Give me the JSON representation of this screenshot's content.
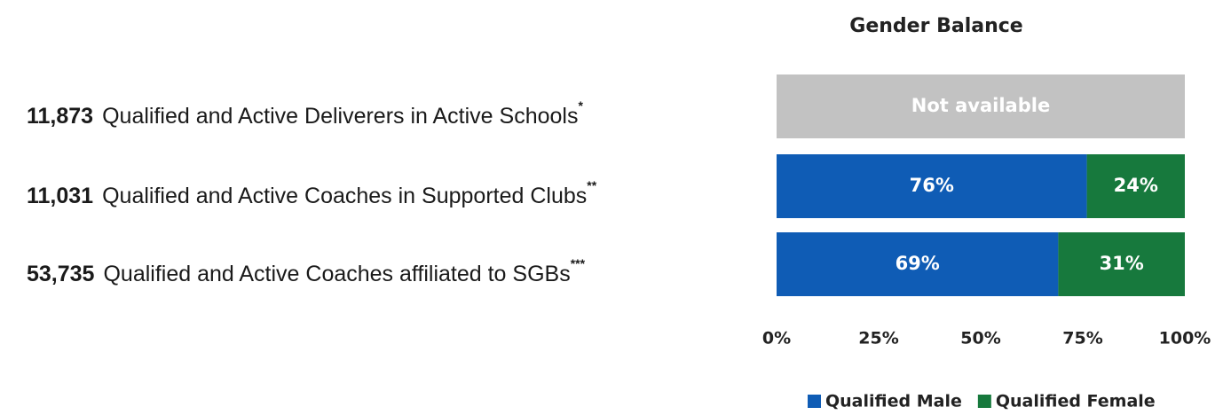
{
  "chart_data": {
    "type": "bar",
    "orientation": "horizontal",
    "stacked": true,
    "title": "Gender Balance",
    "counts": [
      "11,873",
      "11,031",
      "53,735"
    ],
    "categories": [
      "Qualified and Active Deliverers in Active Schools",
      "Qualified and Active Coaches in Supported Clubs",
      "Qualified and Active Coaches affiliated to SGBs"
    ],
    "notes": [
      "*",
      "**",
      "***"
    ],
    "series": [
      {
        "name": "Qualified Male",
        "color": "#0f5cb5",
        "values": [
          null,
          76,
          69
        ],
        "value_labels": [
          null,
          "76%",
          "69%"
        ]
      },
      {
        "name": "Qualified Female",
        "color": "#17793d",
        "values": [
          null,
          24,
          31
        ],
        "value_labels": [
          null,
          "24%",
          "31%"
        ]
      }
    ],
    "annotations": [
      "Not available",
      null,
      null
    ],
    "unavailable_color": "#c2c2c2",
    "xlim": [
      0,
      100
    ],
    "xticks": [
      {
        "value": 0,
        "label": "0%"
      },
      {
        "value": 25,
        "label": "25%"
      },
      {
        "value": 50,
        "label": "50%"
      },
      {
        "value": 75,
        "label": "75%"
      },
      {
        "value": 100,
        "label": "100%"
      }
    ],
    "legend": "bottom"
  }
}
